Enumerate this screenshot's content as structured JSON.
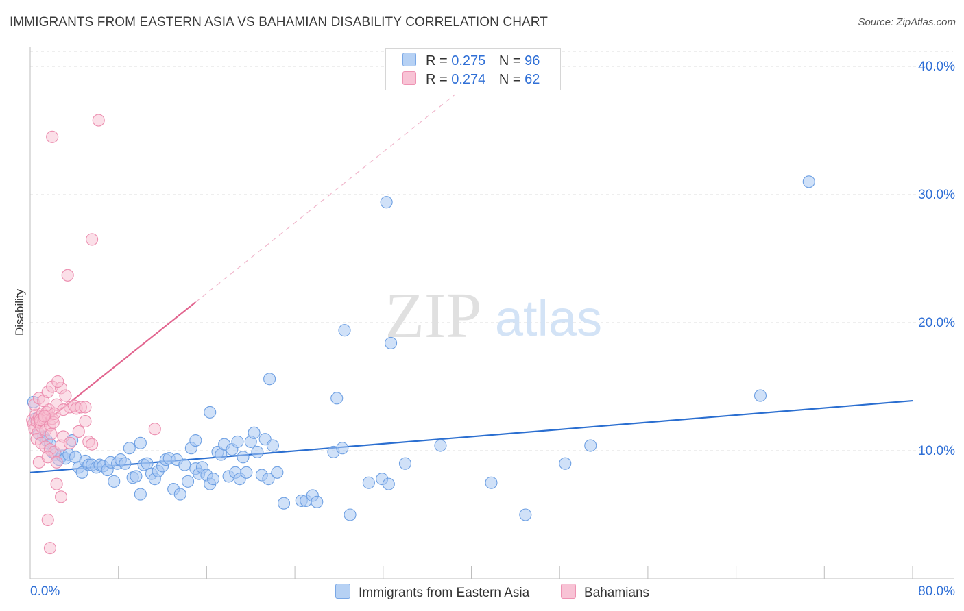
{
  "header": {
    "title": "IMMIGRANTS FROM EASTERN ASIA VS BAHAMIAN DISABILITY CORRELATION CHART",
    "source": "Source: ZipAtlas.com"
  },
  "legend_top": [
    {
      "r_label": "R =",
      "r_value": "0.275",
      "n_label": "N =",
      "n_value": "96"
    },
    {
      "r_label": "R =",
      "r_value": "0.274",
      "n_label": "N =",
      "n_value": "62"
    }
  ],
  "legend_bottom": {
    "series1": "Immigrants from Eastern Asia",
    "series2": "Bahamians"
  },
  "watermark": {
    "zip": "ZIP",
    "atlas": "atlas"
  },
  "colors": {
    "blue_fill": "#a9c9f2",
    "blue_stroke": "#6ea0e3",
    "blue_line": "#2a6ed0",
    "pink_fill": "#f8bfd2",
    "pink_stroke": "#ec8fb0",
    "pink_line": "#e2658f",
    "tick_label": "#2f6fd6",
    "grid": "#dedede"
  },
  "chart_data": {
    "type": "scatter",
    "title": "IMMIGRANTS FROM EASTERN ASIA VS BAHAMIAN DISABILITY CORRELATION CHART",
    "xlabel": "",
    "ylabel": "Disability",
    "xlim": [
      0,
      80
    ],
    "ylim": [
      0,
      42
    ],
    "x_tick_labels": [
      "0.0%",
      "80.0%"
    ],
    "y_ticks": [
      10,
      20,
      30,
      40
    ],
    "y_tick_labels": [
      "10.0%",
      "20.0%",
      "30.0%",
      "40.0%"
    ],
    "grid": true,
    "series": [
      {
        "name": "Immigrants from Eastern Asia",
        "R": 0.275,
        "N": 96,
        "trend": {
          "x": [
            0,
            80
          ],
          "y": [
            8.3,
            13.9
          ]
        },
        "points": [
          [
            0.3,
            13.8
          ],
          [
            0.5,
            12.5
          ],
          [
            0.8,
            11.3
          ],
          [
            1.2,
            11.1
          ],
          [
            1.5,
            10.8
          ],
          [
            1.8,
            10.5
          ],
          [
            2.0,
            9.9
          ],
          [
            2.3,
            9.7
          ],
          [
            2.6,
            9.3
          ],
          [
            2.9,
            9.6
          ],
          [
            3.2,
            9.4
          ],
          [
            3.5,
            9.7
          ],
          [
            3.8,
            10.8
          ],
          [
            4.1,
            9.5
          ],
          [
            4.4,
            8.7
          ],
          [
            4.7,
            8.3
          ],
          [
            5.0,
            9.2
          ],
          [
            5.3,
            8.9
          ],
          [
            5.6,
            8.9
          ],
          [
            6.0,
            8.7
          ],
          [
            6.3,
            8.9
          ],
          [
            6.6,
            8.8
          ],
          [
            7.0,
            8.5
          ],
          [
            7.3,
            9.1
          ],
          [
            7.6,
            7.6
          ],
          [
            7.9,
            9.0
          ],
          [
            8.2,
            9.3
          ],
          [
            8.6,
            9.0
          ],
          [
            9.0,
            10.2
          ],
          [
            9.3,
            7.9
          ],
          [
            9.6,
            8.0
          ],
          [
            10.0,
            6.6
          ],
          [
            10.3,
            8.9
          ],
          [
            10.6,
            9.0
          ],
          [
            11.0,
            8.2
          ],
          [
            11.3,
            7.8
          ],
          [
            11.6,
            8.4
          ],
          [
            12.0,
            8.8
          ],
          [
            12.3,
            9.3
          ],
          [
            12.6,
            9.4
          ],
          [
            13.0,
            7.0
          ],
          [
            13.3,
            9.3
          ],
          [
            13.6,
            6.6
          ],
          [
            14.0,
            8.9
          ],
          [
            14.3,
            7.6
          ],
          [
            14.6,
            10.2
          ],
          [
            15.0,
            8.6
          ],
          [
            15.3,
            8.2
          ],
          [
            15.6,
            8.7
          ],
          [
            16.0,
            8.1
          ],
          [
            16.3,
            7.4
          ],
          [
            16.6,
            7.8
          ],
          [
            17.0,
            9.9
          ],
          [
            17.3,
            9.7
          ],
          [
            17.6,
            10.5
          ],
          [
            18.0,
            8.0
          ],
          [
            18.3,
            10.1
          ],
          [
            18.6,
            8.3
          ],
          [
            19.0,
            7.8
          ],
          [
            19.3,
            9.5
          ],
          [
            19.6,
            8.3
          ],
          [
            20.0,
            10.7
          ],
          [
            20.3,
            11.4
          ],
          [
            20.6,
            9.9
          ],
          [
            21.0,
            8.1
          ],
          [
            21.3,
            10.9
          ],
          [
            21.6,
            7.8
          ],
          [
            22.0,
            10.4
          ],
          [
            22.4,
            8.3
          ],
          [
            23.0,
            5.9
          ],
          [
            24.6,
            6.1
          ],
          [
            25.0,
            6.1
          ],
          [
            25.6,
            6.5
          ],
          [
            26.0,
            6.0
          ],
          [
            27.5,
            9.9
          ],
          [
            28.3,
            10.2
          ],
          [
            29.0,
            5.0
          ],
          [
            30.7,
            7.5
          ],
          [
            31.9,
            7.8
          ],
          [
            32.5,
            7.4
          ],
          [
            34.0,
            9.0
          ],
          [
            37.2,
            10.4
          ],
          [
            10.0,
            10.6
          ],
          [
            15.0,
            10.8
          ],
          [
            18.8,
            10.7
          ],
          [
            16.3,
            13.0
          ],
          [
            21.7,
            15.6
          ],
          [
            27.8,
            14.1
          ],
          [
            32.7,
            18.4
          ],
          [
            28.5,
            19.4
          ],
          [
            32.3,
            29.4
          ],
          [
            48.5,
            9.0
          ],
          [
            50.8,
            10.4
          ],
          [
            44.9,
            5.0
          ],
          [
            41.8,
            7.5
          ],
          [
            66.2,
            14.3
          ],
          [
            70.6,
            31.0
          ]
        ]
      },
      {
        "name": "Bahamians",
        "R": 0.274,
        "N": 62,
        "trend": {
          "x": [
            0,
            15
          ],
          "y": [
            11.3,
            21.6
          ]
        },
        "trend_dashed_to": {
          "x": [
            15,
            38.5
          ],
          "y": [
            21.6,
            37.8
          ]
        },
        "points": [
          [
            0.2,
            12.4
          ],
          [
            0.3,
            12.1
          ],
          [
            0.4,
            11.7
          ],
          [
            0.5,
            12.8
          ],
          [
            0.6,
            12.3
          ],
          [
            0.7,
            11.4
          ],
          [
            0.8,
            12.6
          ],
          [
            0.9,
            12.2
          ],
          [
            1.0,
            11.9
          ],
          [
            1.1,
            12.9
          ],
          [
            1.2,
            12.3
          ],
          [
            1.3,
            12.5
          ],
          [
            1.4,
            11.6
          ],
          [
            1.5,
            13.0
          ],
          [
            1.6,
            12.7
          ],
          [
            1.7,
            13.2
          ],
          [
            1.8,
            12.0
          ],
          [
            1.9,
            11.3
          ],
          [
            2.0,
            12.5
          ],
          [
            2.1,
            12.2
          ],
          [
            0.4,
            13.6
          ],
          [
            0.8,
            14.1
          ],
          [
            1.2,
            13.9
          ],
          [
            1.6,
            14.6
          ],
          [
            2.0,
            15.0
          ],
          [
            2.4,
            13.6
          ],
          [
            2.8,
            14.9
          ],
          [
            3.2,
            14.3
          ],
          [
            3.6,
            13.4
          ],
          [
            4.0,
            13.5
          ],
          [
            2.5,
            15.4
          ],
          [
            3.0,
            13.2
          ],
          [
            4.2,
            13.3
          ],
          [
            4.6,
            13.4
          ],
          [
            5.0,
            13.4
          ],
          [
            0.6,
            10.9
          ],
          [
            1.0,
            10.6
          ],
          [
            1.4,
            10.3
          ],
          [
            1.8,
            10.1
          ],
          [
            2.2,
            9.9
          ],
          [
            0.8,
            9.1
          ],
          [
            1.6,
            9.5
          ],
          [
            2.4,
            9.1
          ],
          [
            2.8,
            10.4
          ],
          [
            4.4,
            11.5
          ],
          [
            5.0,
            12.3
          ],
          [
            5.3,
            10.7
          ],
          [
            5.6,
            10.5
          ],
          [
            3.0,
            11.1
          ],
          [
            2.2,
            12.9
          ],
          [
            3.6,
            10.6
          ],
          [
            11.3,
            11.7
          ],
          [
            2.4,
            7.4
          ],
          [
            2.8,
            6.4
          ],
          [
            1.6,
            4.6
          ],
          [
            1.8,
            2.4
          ],
          [
            3.4,
            23.7
          ],
          [
            5.6,
            26.5
          ],
          [
            2.0,
            34.5
          ],
          [
            6.2,
            35.8
          ],
          [
            0.9,
            12.4
          ],
          [
            1.3,
            12.7
          ]
        ]
      }
    ]
  }
}
